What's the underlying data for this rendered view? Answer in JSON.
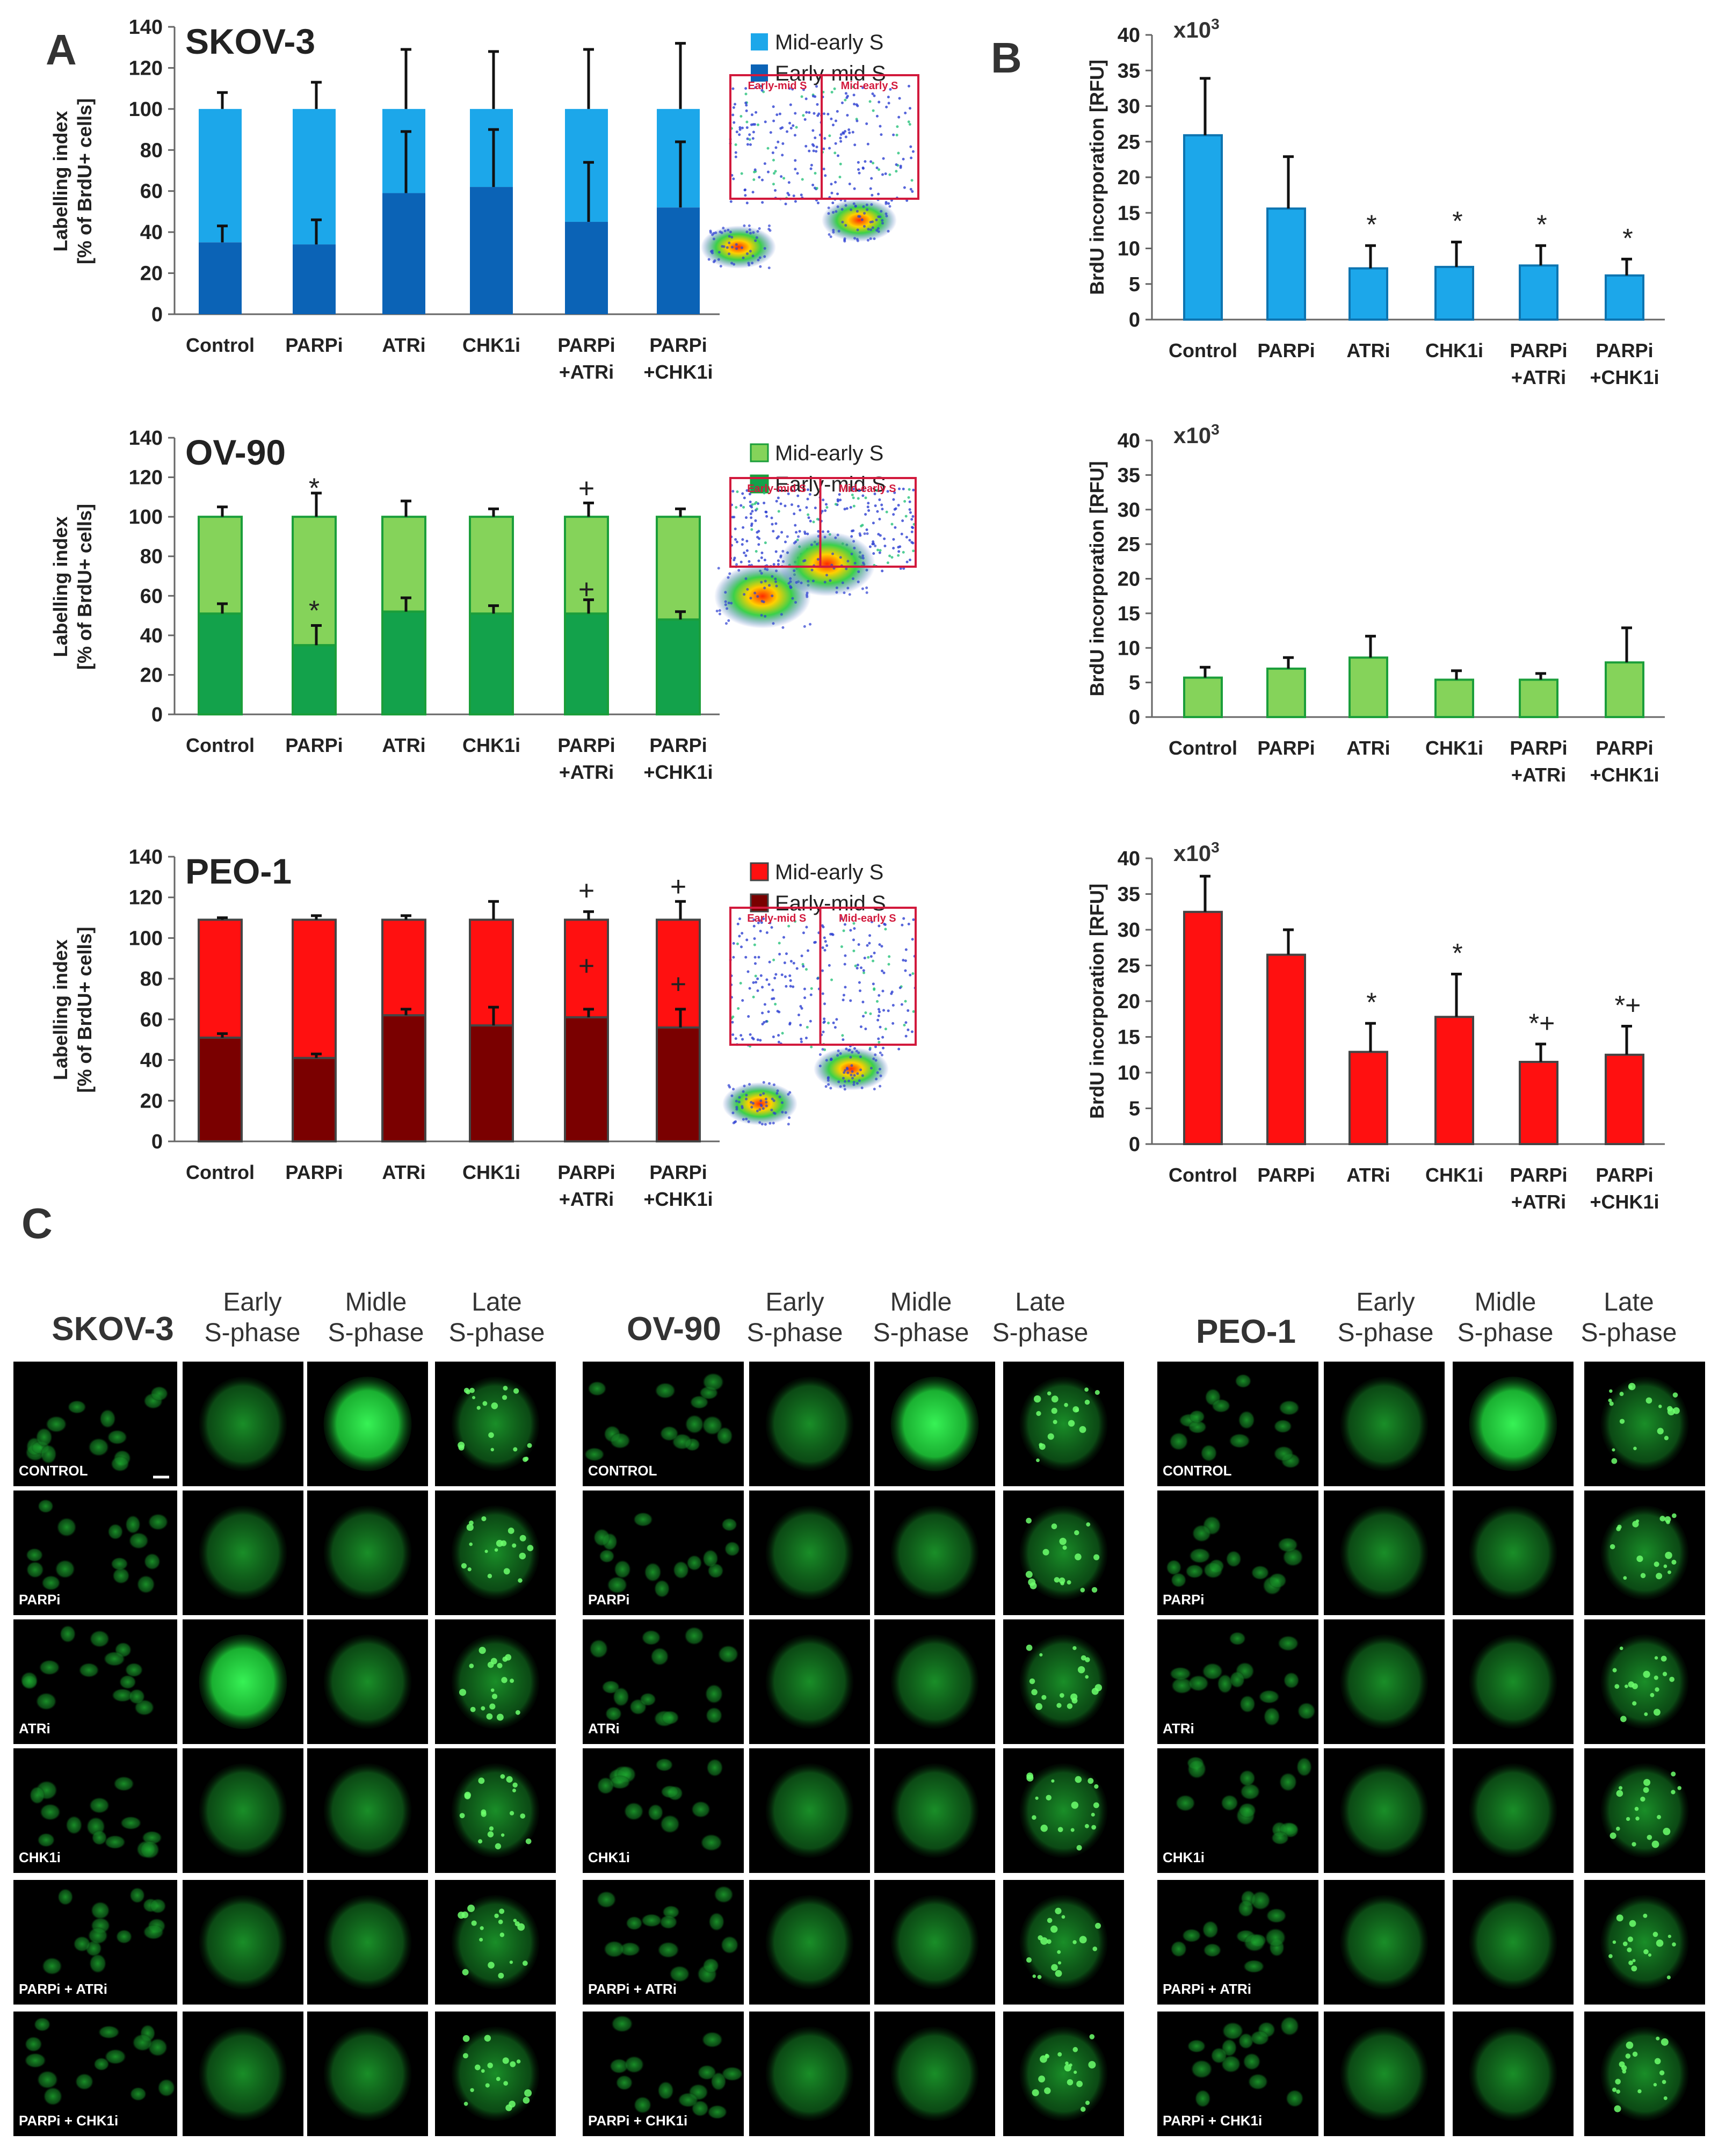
{
  "figure_letters": {
    "a": "A",
    "b": "B",
    "c": "C"
  },
  "power_label": "x10",
  "power_exp": "3",
  "colors": {
    "skov_light": "#1ca7ea",
    "skov_dark": "#0b63b6",
    "ov_light": "#85d35a",
    "ov_dark": "#13a24b",
    "ov_edge": "#1b9e3a",
    "peo_light": "#ff1010",
    "peo_dark": "#7a0000",
    "peo_edge": "#444444",
    "gate": "#d2193c"
  },
  "flow_gates": {
    "left": "Early-mid S",
    "right": "Mid-early S"
  },
  "chart_data": [
    {
      "id": "A_SKOV3",
      "type": "stacked bar",
      "title": "SKOV-3",
      "ylabel": "Labelling index",
      "ylabel2": "[% of BrdU+ cells]",
      "ylim": [
        0,
        140
      ],
      "categories": [
        "Control",
        "PARPi",
        "ATRi",
        "CHK1i",
        "PARPi\n+ATRi",
        "PARPi\n+CHK1i"
      ],
      "series": [
        {
          "name": "Early-mid S",
          "values": [
            35,
            34,
            59,
            62,
            45,
            52
          ],
          "err": [
            8,
            12,
            30,
            28,
            29,
            32
          ]
        },
        {
          "name": "Mid-early S",
          "values": [
            65,
            66,
            41,
            38,
            55,
            48
          ],
          "err": [
            8,
            13,
            29,
            28,
            29,
            32
          ]
        }
      ],
      "legend": [
        "Mid-early S",
        "Early-mid S"
      ],
      "annotations": []
    },
    {
      "id": "A_OV90",
      "type": "stacked bar",
      "title": "OV-90",
      "ylabel": "Labelling index",
      "ylabel2": "[% of BrdU+ cells]",
      "ylim": [
        0,
        140
      ],
      "categories": [
        "Control",
        "PARPi",
        "ATRi",
        "CHK1i",
        "PARPi\n+ATRi",
        "PARPi\n+CHK1i"
      ],
      "series": [
        {
          "name": "Early-mid S",
          "values": [
            51,
            35,
            52,
            51,
            51,
            48
          ],
          "err": [
            5,
            10,
            7,
            4,
            7,
            4
          ]
        },
        {
          "name": "Mid-early S",
          "values": [
            49,
            65,
            48,
            49,
            49,
            52
          ],
          "err": [
            5,
            12,
            8,
            4,
            7,
            4
          ]
        }
      ],
      "legend": [
        "Mid-early S",
        "Early-mid S"
      ],
      "annotations": [
        {
          "text": "*",
          "cat": 1,
          "y": 114
        },
        {
          "text": "*",
          "cat": 1,
          "y": 52
        },
        {
          "text": "+",
          "cat": 4,
          "y": 114
        },
        {
          "text": "+",
          "cat": 4,
          "y": 63
        }
      ]
    },
    {
      "id": "A_PEO1",
      "type": "stacked bar",
      "title": "PEO-1",
      "ylabel": "Labelling index",
      "ylabel2": "[% of BrdU+ cells]",
      "ylim": [
        0,
        140
      ],
      "categories": [
        "Control",
        "PARPi",
        "ATRi",
        "CHK1i",
        "PARPi\n+ATRi",
        "PARPi\n+CHK1i"
      ],
      "series": [
        {
          "name": "Early-mid S",
          "values": [
            51,
            41,
            62,
            57,
            61,
            56
          ],
          "err": [
            2,
            2,
            3,
            9,
            4,
            9
          ]
        },
        {
          "name": "Mid-early S",
          "values": [
            58,
            68,
            47,
            52,
            48,
            53
          ],
          "err": [
            1,
            2,
            2,
            9,
            4,
            9
          ]
        }
      ],
      "legend": [
        "Mid-early S",
        "Early-mid S"
      ],
      "annotations": [
        {
          "text": "+",
          "cat": 4,
          "y": 123
        },
        {
          "text": "+",
          "cat": 4,
          "y": 86
        },
        {
          "text": "+",
          "cat": 5,
          "y": 125
        },
        {
          "text": "+",
          "cat": 5,
          "y": 77
        }
      ]
    },
    {
      "id": "B_SKOV3",
      "type": "bar",
      "ylabel": "BrdU incorporation [RFU]",
      "ylim": [
        0,
        40
      ],
      "power": "x10³",
      "categories": [
        "Control",
        "PARPi",
        "ATRi",
        "CHK1i",
        "PARPi\n+ATRi",
        "PARPi\n+CHK1i"
      ],
      "values": [
        25.9,
        15.6,
        7.2,
        7.4,
        7.6,
        6.2
      ],
      "err": [
        8,
        7.3,
        3.2,
        3.5,
        2.8,
        2.3
      ],
      "annotations": [
        "",
        "",
        "*",
        "*",
        "*",
        "*"
      ]
    },
    {
      "id": "B_OV90",
      "type": "bar",
      "ylabel": "BrdU incorporation [RFU]",
      "ylim": [
        0,
        40
      ],
      "power": "x10³",
      "categories": [
        "Control",
        "PARPi",
        "ATRi",
        "CHK1i",
        "PARPi\n+ATRi",
        "PARPi\n+CHK1i"
      ],
      "values": [
        5.7,
        7,
        8.6,
        5.4,
        5.4,
        7.9
      ],
      "err": [
        1.5,
        1.6,
        3.1,
        1.3,
        0.9,
        5
      ],
      "annotations": [
        "",
        "",
        "",
        "",
        "",
        ""
      ]
    },
    {
      "id": "B_PEO1",
      "type": "bar",
      "ylabel": "BrdU incorporation [RFU]",
      "ylim": [
        0,
        40
      ],
      "power": "x10³",
      "categories": [
        "Control",
        "PARPi",
        "ATRi",
        "CHK1i",
        "PARPi\n+ATRi",
        "PARPi\n+CHK1i"
      ],
      "values": [
        32.5,
        26.5,
        12.9,
        17.8,
        11.5,
        12.5
      ],
      "err": [
        5,
        3.5,
        4,
        6,
        2.5,
        4
      ],
      "annotations": [
        "",
        "",
        "*",
        "*",
        "*+",
        "*+"
      ]
    }
  ],
  "microscopy": {
    "columns": [
      "Early\nS-phase",
      "Midle\nS-phase",
      "Late\nS-phase"
    ],
    "panels": [
      {
        "cell_line": "SKOV-3"
      },
      {
        "cell_line": "OV-90"
      },
      {
        "cell_line": "PEO-1"
      }
    ],
    "rows": [
      "CONTROL",
      "PARPi",
      "ATRi",
      "CHK1i",
      "PARPi + ATRi",
      "PARPi + CHK1i"
    ]
  }
}
